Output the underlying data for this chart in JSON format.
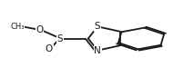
{
  "bg_color": "#ffffff",
  "line_color": "#1a1a1a",
  "lw": 1.3,
  "xlim": [
    0.0,
    1.0
  ],
  "ylim": [
    0.0,
    1.0
  ],
  "figsize": [
    1.9,
    0.85
  ],
  "dpi": 100
}
